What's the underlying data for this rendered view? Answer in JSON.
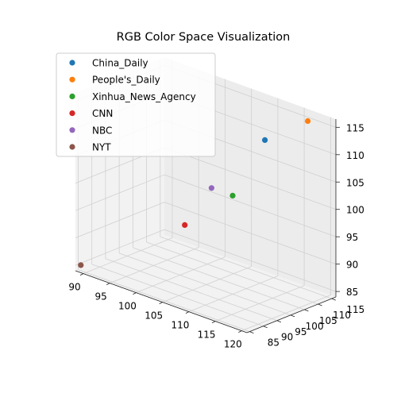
{
  "chart_data": {
    "type": "scatter",
    "projection": "3d",
    "title": "RGB Color Space Visualization",
    "xlabel": "",
    "ylabel": "",
    "zlabel": "",
    "x_ticks": [
      90,
      95,
      100,
      105,
      110,
      115,
      120
    ],
    "y_ticks": [
      85,
      90,
      95,
      100,
      105,
      110,
      115
    ],
    "z_ticks": [
      85,
      90,
      95,
      100,
      105,
      110,
      115
    ],
    "legend_position": "top-left",
    "grid": true,
    "series": [
      {
        "name": "China_Daily",
        "color": "#1f77b4",
        "x": 113,
        "y": 106,
        "z": 112
      },
      {
        "name": "People's_Daily",
        "color": "#ff7f0e",
        "x": 118,
        "y": 112,
        "z": 116
      },
      {
        "name": "Xinhua_News_Agency",
        "color": "#2ca02c",
        "x": 110,
        "y": 100,
        "z": 102
      },
      {
        "name": "CNN",
        "color": "#d62728",
        "x": 103,
        "y": 96,
        "z": 95
      },
      {
        "name": "NBC",
        "color": "#9467bd",
        "x": 106,
        "y": 100,
        "z": 102
      },
      {
        "name": "NYT",
        "color": "#8c564b",
        "x": 89,
        "y": 85,
        "z": 85
      }
    ]
  }
}
